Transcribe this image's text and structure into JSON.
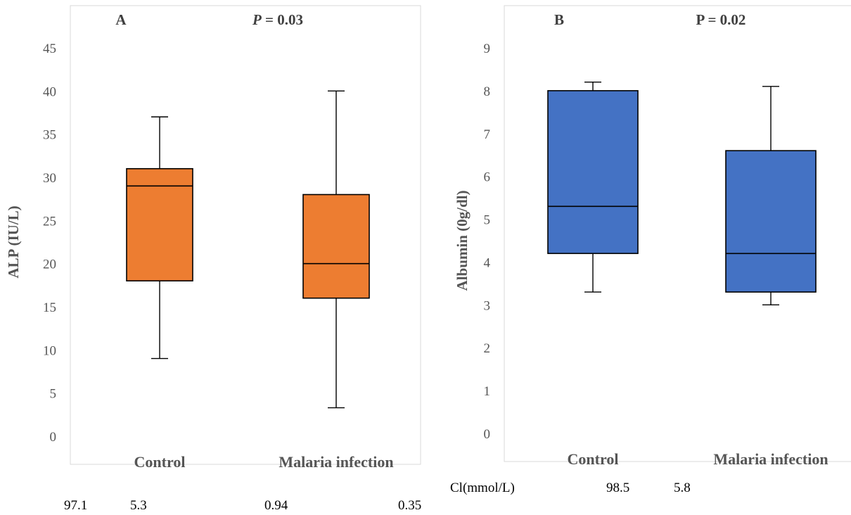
{
  "chart_data": [
    {
      "type": "box",
      "panel_label": "A",
      "p_label_italic": "P",
      "p_label_rest": " = 0.03",
      "ylabel": "ALP (IU/L)",
      "xlabel": "",
      "ylim": [
        0,
        45
      ],
      "ytick_step": 5,
      "categories": [
        "Control",
        "Malaria infection"
      ],
      "color": "#ED7D31",
      "boxes": [
        {
          "category": "Control",
          "min": 9,
          "q1": 18,
          "median": 29,
          "q3": 31,
          "max": 37
        },
        {
          "category": "Malaria infection",
          "min": 3.3,
          "q1": 16,
          "median": 20,
          "q3": 28,
          "max": 40
        }
      ]
    },
    {
      "type": "box",
      "panel_label": "B",
      "p_label_italic": "",
      "p_label_rest": "P = 0.02",
      "ylabel": "Albumin (0g/dl)",
      "xlabel": "",
      "ylim": [
        0,
        9
      ],
      "ytick_step": 1,
      "categories": [
        "Control",
        "Malaria infection"
      ],
      "color": "#4472C4",
      "boxes": [
        {
          "category": "Control",
          "min": 3.3,
          "q1": 4.2,
          "median": 5.3,
          "q3": 8.0,
          "max": 8.2
        },
        {
          "category": "Malaria infection",
          "min": 3.0,
          "q1": 3.3,
          "median": 4.2,
          "q3": 6.6,
          "max": 8.1
        }
      ]
    }
  ],
  "footer_text": {
    "cl_label": "Cl(mmol/L)",
    "cl_value1": "98.5",
    "cl_value2": "5.8",
    "row_value1": "97.1",
    "row_value2": "5.3",
    "row_value3": "0.94",
    "row_value4": "0.35"
  }
}
